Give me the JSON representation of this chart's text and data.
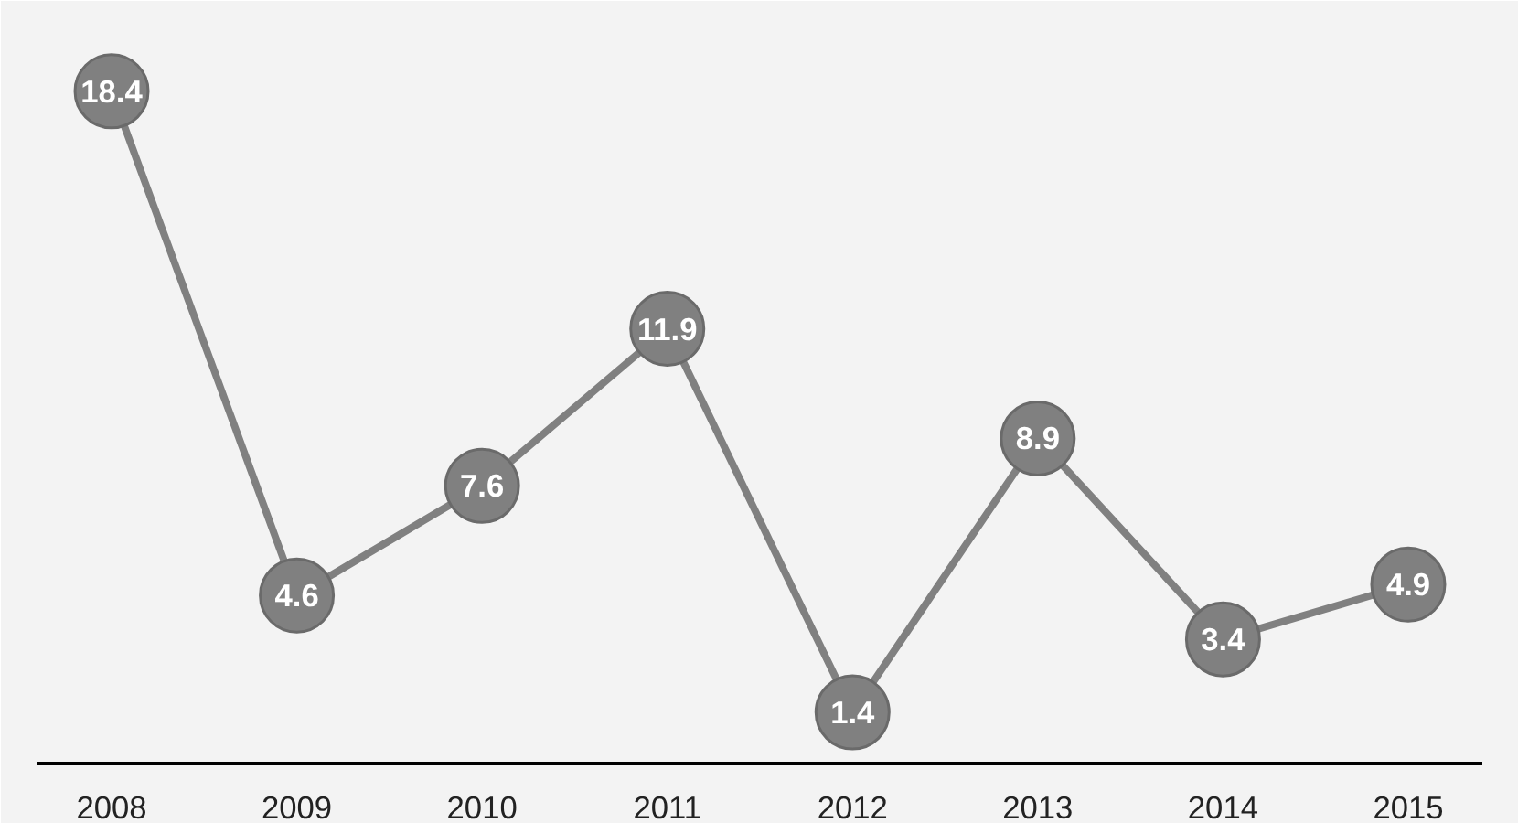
{
  "chart_data": {
    "type": "line",
    "categories": [
      "2008",
      "2009",
      "2010",
      "2011",
      "2012",
      "2013",
      "2014",
      "2015"
    ],
    "series": [
      {
        "color": "#808080",
        "values": [
          18.4,
          4.6,
          7.6,
          11.9,
          1.4,
          8.9,
          3.4,
          4.9
        ]
      }
    ],
    "data_labels": true,
    "marker": "circle",
    "grid": false,
    "tick_labels": "x"
  }
}
